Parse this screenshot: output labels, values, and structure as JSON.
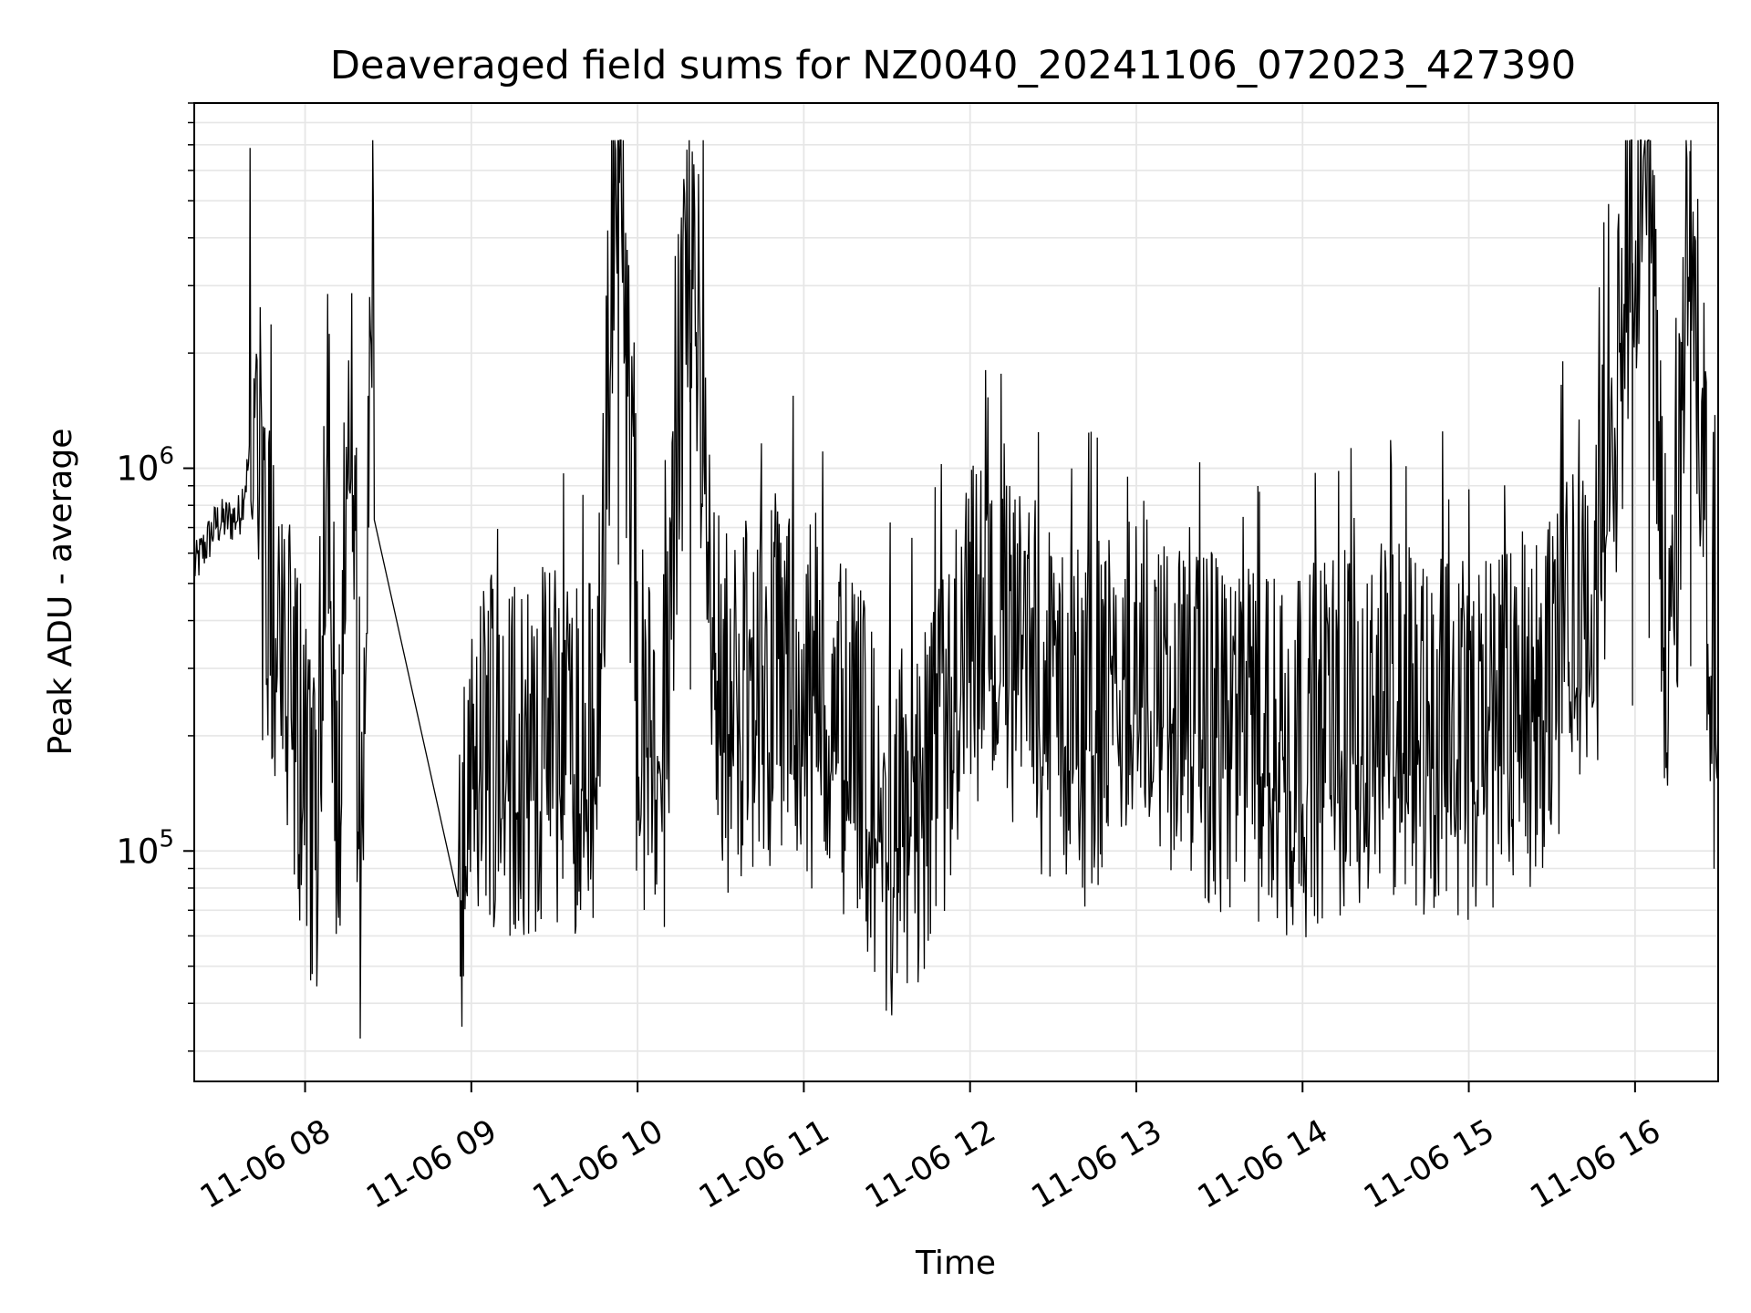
{
  "chart_data": {
    "type": "line",
    "title": "Deaveraged field sums for NZ0040_20241106_072023_427390",
    "xlabel": "Time",
    "ylabel": "Peak ADU - average",
    "yscale": "log",
    "ylim": [
      25000,
      9000000
    ],
    "xlim": [
      "2024-11-06 07:20:00",
      "2024-11-06 16:30:00"
    ],
    "x_ticks": [
      {
        "value": "2024-11-06 08:00",
        "label": "11-06 08"
      },
      {
        "value": "2024-11-06 09:00",
        "label": "11-06 09"
      },
      {
        "value": "2024-11-06 10:00",
        "label": "11-06 10"
      },
      {
        "value": "2024-11-06 11:00",
        "label": "11-06 11"
      },
      {
        "value": "2024-11-06 12:00",
        "label": "11-06 12"
      },
      {
        "value": "2024-11-06 13:00",
        "label": "11-06 13"
      },
      {
        "value": "2024-11-06 14:00",
        "label": "11-06 14"
      },
      {
        "value": "2024-11-06 15:00",
        "label": "11-06 15"
      },
      {
        "value": "2024-11-06 16:00",
        "label": "11-06 16"
      }
    ],
    "y_ticks": [
      {
        "value": 100000,
        "base": "10",
        "exp": "5"
      },
      {
        "value": 1000000,
        "base": "10",
        "exp": "6"
      }
    ],
    "grid": true,
    "legend": "none",
    "line_color": "#000000",
    "grid_color": "#e6e6e6",
    "series": [
      {
        "x": [
          "2024-11-06 07:20",
          "2024-11-06 07:28",
          "2024-11-06 07:36",
          "2024-11-06 07:40",
          "2024-11-06 07:44",
          "2024-11-06 07:48",
          "2024-11-06 07:52",
          "2024-11-06 07:56",
          "2024-11-06 08:00",
          "2024-11-06 08:04",
          "2024-11-06 08:08",
          "2024-11-06 08:12",
          "2024-11-06 08:16",
          "2024-11-06 08:20",
          "2024-11-06 08:24",
          "2024-11-06 08:56",
          "2024-11-06 09:05",
          "2024-11-06 09:15",
          "2024-11-06 09:25",
          "2024-11-06 09:35",
          "2024-11-06 09:45",
          "2024-11-06 09:53",
          "2024-11-06 10:00",
          "2024-11-06 10:10",
          "2024-11-06 10:19",
          "2024-11-06 10:30",
          "2024-11-06 10:45",
          "2024-11-06 11:00",
          "2024-11-06 11:15",
          "2024-11-06 11:30",
          "2024-11-06 11:45",
          "2024-11-06 12:00",
          "2024-11-06 12:15",
          "2024-11-06 12:30",
          "2024-11-06 12:45",
          "2024-11-06 13:00",
          "2024-11-06 13:15",
          "2024-11-06 13:30",
          "2024-11-06 13:45",
          "2024-11-06 14:00",
          "2024-11-06 14:15",
          "2024-11-06 14:30",
          "2024-11-06 14:45",
          "2024-11-06 15:00",
          "2024-11-06 15:15",
          "2024-11-06 15:30",
          "2024-11-06 15:45",
          "2024-11-06 15:59",
          "2024-11-06 16:05",
          "2024-11-06 16:10",
          "2024-11-06 16:15",
          "2024-11-06 16:20",
          "2024-11-06 16:25",
          "2024-11-06 16:30"
        ],
        "y": [
          550000,
          720000,
          750000,
          1050000,
          450000,
          330000,
          230000,
          160000,
          110000,
          80000,
          1000000,
          70000,
          1400000,
          60000,
          1400000,
          60000,
          150000,
          120000,
          130000,
          140000,
          120000,
          7000000,
          150000,
          140000,
          3300000,
          160000,
          200000,
          180000,
          130000,
          80000,
          90000,
          250000,
          220000,
          160000,
          150000,
          200000,
          180000,
          140000,
          130000,
          130000,
          150000,
          160000,
          150000,
          140000,
          150000,
          200000,
          280000,
          3000000,
          4500000,
          300000,
          350000,
          3800000,
          500000,
          120000
        ],
        "gaps": [
          [
            "2024-11-06 08:25",
            "2024-11-06 08:55"
          ]
        ]
      }
    ]
  }
}
